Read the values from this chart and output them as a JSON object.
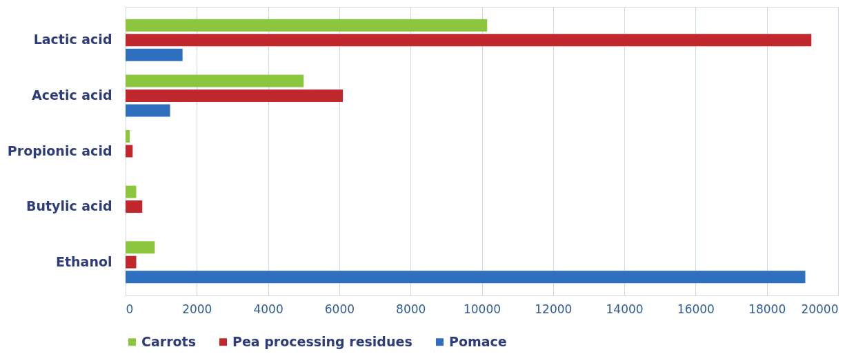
{
  "chart_data": {
    "type": "bar",
    "orientation": "horizontal",
    "categories": [
      "Lactic acid",
      "Acetic acid",
      "Propionic acid",
      "Butylic acid",
      "Ethanol"
    ],
    "series": [
      {
        "name": "Carrots",
        "color": "#8cc63f",
        "values": [
          10150,
          5000,
          120,
          300,
          820
        ]
      },
      {
        "name": "Pea processing residues",
        "color": "#c0282d",
        "values": [
          19250,
          6100,
          200,
          470,
          300
        ]
      },
      {
        "name": "Pomace",
        "color": "#2e6fc0",
        "values": [
          1600,
          1250,
          null,
          null,
          19080
        ]
      }
    ],
    "xlim": [
      0,
      20000
    ],
    "xticks": [
      0,
      2000,
      4000,
      6000,
      8000,
      10000,
      12000,
      14000,
      16000,
      18000,
      20000
    ],
    "grid": "x",
    "legend": "bottom"
  }
}
